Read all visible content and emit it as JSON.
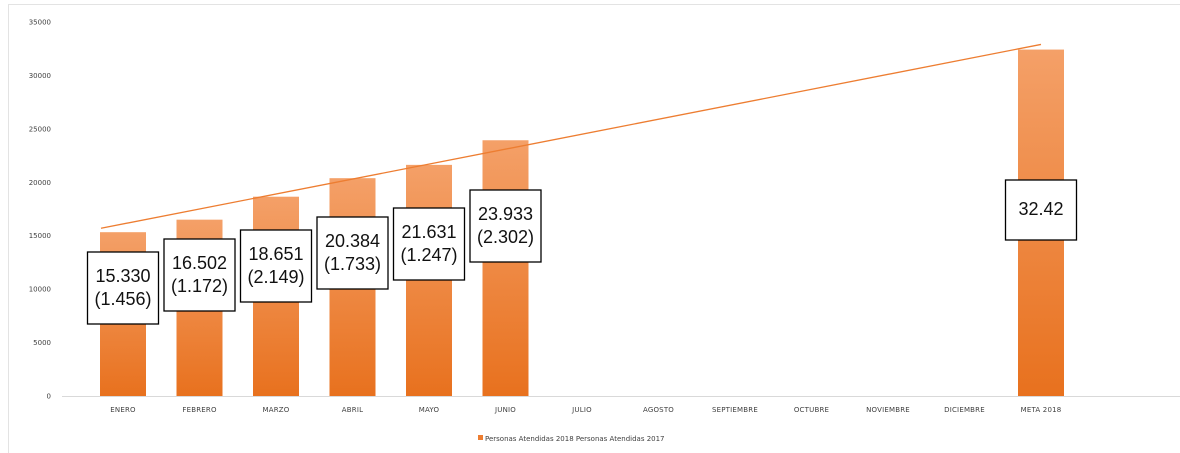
{
  "chart_data": {
    "type": "bar",
    "categories": [
      "ENERO",
      "FEBRERO",
      "MARZO",
      "ABRIL",
      "MAYO",
      "JUNIO",
      "JULIO",
      "AGOSTO",
      "SEPTIEMBRE",
      "OCTUBRE",
      "NOVIEMBRE",
      "DICIEMBRE",
      "META 2018"
    ],
    "series": [
      {
        "name": "Personas Atendidas 2018",
        "values": [
          15330,
          16502,
          18651,
          20384,
          21631,
          23933,
          null,
          null,
          null,
          null,
          null,
          null,
          32420
        ]
      }
    ],
    "trendline": {
      "from": 15700,
      "to": 32900
    },
    "data_labels": [
      [
        "15.330",
        "(1.456)"
      ],
      [
        "16.502",
        "(1.172)"
      ],
      [
        "18.651",
        "(2.149)"
      ],
      [
        "20.384",
        "(1.733)"
      ],
      [
        "21.631",
        "(1.247)"
      ],
      [
        "23.933",
        "(2.302)"
      ],
      null,
      null,
      null,
      null,
      null,
      null,
      [
        "32.42",
        ""
      ]
    ],
    "legend_text": "Personas Atendidas 2018 Personas Atendidas 2017",
    "ylim": [
      0,
      35000
    ],
    "yticks": [
      0,
      5000,
      10000,
      15000,
      20000,
      25000,
      30000,
      35000
    ],
    "ytick_labels": [
      "0",
      "5000",
      "10000",
      "15000",
      "20000",
      "25000",
      "30000",
      "35000"
    ],
    "grid": false,
    "legend_position": "bottom",
    "colors": {
      "bar_top": "#f4a068",
      "bar_bottom": "#e8711e",
      "trend": "#ed7d31",
      "legend_swatch": "#ed7d31"
    }
  }
}
